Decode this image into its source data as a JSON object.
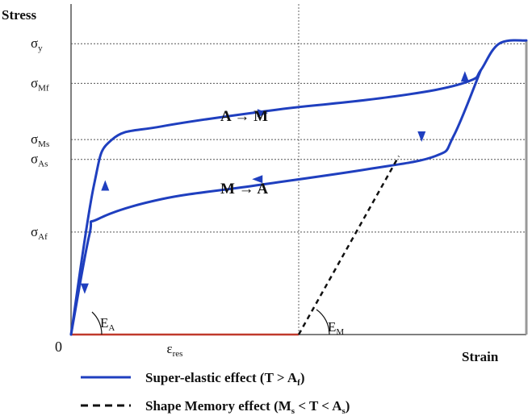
{
  "chart_data": {
    "type": "line",
    "title": "",
    "ylabel": "Stress",
    "xlabel": "Strain",
    "origin_label": "0",
    "y_levels": [
      {
        "name": "sigma-y",
        "base": "σ",
        "sub": "y",
        "value": 0.88
      },
      {
        "name": "sigma-mf",
        "base": "σ",
        "sub": "Mf",
        "value": 0.76
      },
      {
        "name": "sigma-ms",
        "base": "σ",
        "sub": "Ms",
        "value": 0.59
      },
      {
        "name": "sigma-as",
        "base": "σ",
        "sub": "As",
        "value": 0.53
      },
      {
        "name": "sigma-af",
        "base": "σ",
        "sub": "Af",
        "value": 0.31
      }
    ],
    "x_marks": [
      {
        "name": "epsilon-res",
        "base": "ε",
        "sub": "res",
        "value": 0.5
      }
    ],
    "x_divider": 0.5,
    "series": [
      {
        "name": "Super-elastic effect",
        "style": "solid",
        "color": "#1f3fbf",
        "segments": [
          {
            "name": "loading-branch",
            "points": [
              [
                0,
                0
              ],
              [
                0.05,
                0.45
              ],
              [
                0.09,
                0.59
              ],
              [
                0.2,
                0.63
              ],
              [
                0.45,
                0.68
              ],
              [
                0.65,
                0.71
              ],
              [
                0.8,
                0.74
              ],
              [
                0.88,
                0.77
              ],
              [
                0.9,
                0.8
              ],
              [
                0.94,
                0.88
              ],
              [
                1.0,
                0.89
              ]
            ]
          },
          {
            "name": "unloading-branch",
            "points": [
              [
                0.9,
                0.8
              ],
              [
                0.84,
                0.6
              ],
              [
                0.8,
                0.54
              ],
              [
                0.65,
                0.5
              ],
              [
                0.4,
                0.45
              ],
              [
                0.2,
                0.41
              ],
              [
                0.06,
                0.35
              ],
              [
                0.04,
                0.3
              ],
              [
                0,
                0
              ]
            ]
          }
        ]
      },
      {
        "name": "Shape Memory effect",
        "style": "dashed",
        "color": "#111111",
        "segments": [
          {
            "name": "shape-memory-line",
            "points": [
              [
                0.5,
                0
              ],
              [
                0.72,
                0.54
              ]
            ]
          }
        ]
      }
    ],
    "residual_strain_line": {
      "from": 0,
      "to": 0.5,
      "color": "#c0392b"
    },
    "arrows": [
      {
        "name": "arrow-loading-1",
        "at": [
          0.03,
          0.14
        ],
        "dir": "down"
      },
      {
        "name": "arrow-loading-2",
        "at": [
          0.075,
          0.45
        ],
        "dir": "up"
      },
      {
        "name": "arrow-plateau-up",
        "at": [
          0.42,
          0.67
        ],
        "dir": "right"
      },
      {
        "name": "arrow-loading-3",
        "at": [
          0.865,
          0.78
        ],
        "dir": "up"
      },
      {
        "name": "arrow-unloading-1",
        "at": [
          0.77,
          0.6
        ],
        "dir": "down"
      },
      {
        "name": "arrow-plateau-down",
        "at": [
          0.41,
          0.47
        ],
        "dir": "left"
      }
    ],
    "annotations": [
      {
        "name": "a-to-m-label",
        "text": "A → M"
      },
      {
        "name": "m-to-a-label",
        "text": "M → A"
      },
      {
        "name": "ea-label",
        "base": "E",
        "sub": "A"
      },
      {
        "name": "em-label",
        "base": "E",
        "sub": "M"
      }
    ],
    "legend": {
      "placement": "bottom",
      "entries": [
        {
          "name": "legend-super-elastic",
          "label_main": "Super-elastic effect (T > A",
          "label_sub": "f",
          "label_tail": ")"
        },
        {
          "name": "legend-shape-memory",
          "label_main": "Shape Memory effect (M",
          "label_sub": "s",
          "label_mid": " < T < A",
          "label_sub2": "s",
          "label_tail": ")"
        }
      ]
    }
  }
}
